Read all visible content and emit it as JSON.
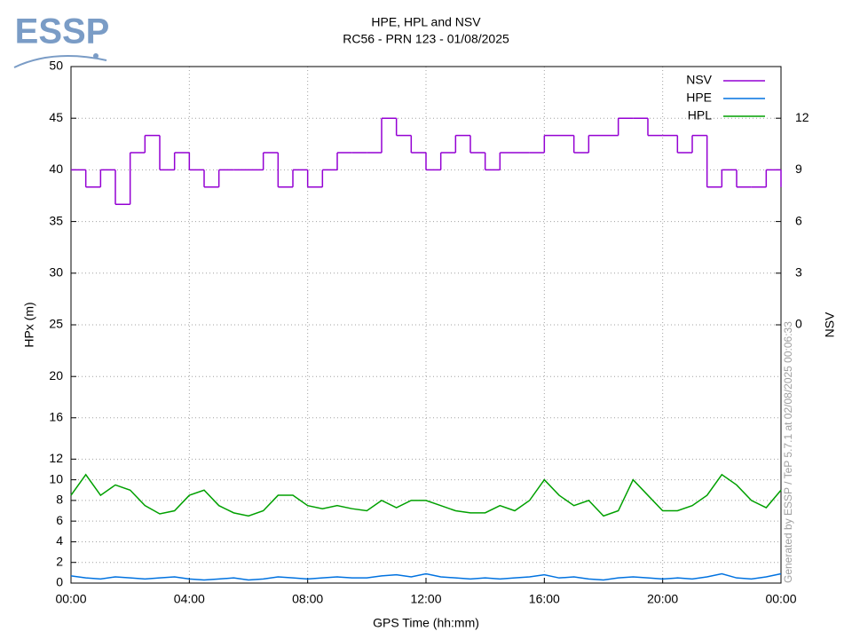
{
  "logo": "ESSP",
  "footer_note": "Generated by ESSP / TeP 5.7.1 at 02/08/2025 00:06:33",
  "chart_data": {
    "type": "line",
    "title": "HPE, HPL and NSV",
    "subtitle": "RC56 - PRN 123 - 01/08/2025",
    "x_label": "GPS Time (hh:mm)",
    "y_label": "HPx (m)",
    "y2_label": "NSV",
    "x": [
      0,
      0.5,
      1,
      1.5,
      2,
      2.5,
      3,
      3.5,
      4,
      4.5,
      5,
      5.5,
      6,
      6.5,
      7,
      7.5,
      8,
      8.5,
      9,
      9.5,
      10,
      10.5,
      11,
      11.5,
      12,
      12.5,
      13,
      13.5,
      14,
      14.5,
      15,
      15.5,
      16,
      16.5,
      17,
      17.5,
      18,
      18.5,
      19,
      19.5,
      20,
      20.5,
      21,
      21.5,
      22,
      22.5,
      23,
      23.5,
      24
    ],
    "xlim": [
      0,
      24
    ],
    "xticks": [
      {
        "value": 0,
        "label": "00:00"
      },
      {
        "value": 4,
        "label": "04:00"
      },
      {
        "value": 8,
        "label": "08:00"
      },
      {
        "value": 12,
        "label": "12:00"
      },
      {
        "value": 16,
        "label": "16:00"
      },
      {
        "value": 20,
        "label": "20:00"
      },
      {
        "value": 24,
        "label": "00:00"
      }
    ],
    "ylim": [
      0,
      50
    ],
    "yticks": [
      0,
      2,
      4,
      6,
      8,
      10,
      12,
      16,
      20,
      25,
      30,
      35,
      40,
      45,
      50
    ],
    "y2lim": [
      -15,
      15
    ],
    "y2ticks": [
      0,
      3,
      6,
      9,
      12
    ],
    "grid": true,
    "legend": "top-right",
    "series": [
      {
        "name": "NSV",
        "color": "#9400d3",
        "axis": "y2",
        "step": true,
        "values": [
          9,
          8,
          9,
          7,
          10,
          11,
          9,
          10,
          9,
          8,
          9,
          9,
          9,
          10,
          8,
          9,
          8,
          9,
          10,
          10,
          10,
          12,
          11,
          10,
          9,
          10,
          11,
          10,
          9,
          10,
          10,
          10,
          11,
          11,
          10,
          11,
          11,
          12,
          12,
          11,
          11,
          10,
          11,
          8,
          9,
          8,
          8,
          9,
          8
        ]
      },
      {
        "name": "HPE",
        "color": "#0072e0",
        "values": [
          0.7,
          0.5,
          0.4,
          0.6,
          0.5,
          0.4,
          0.5,
          0.6,
          0.4,
          0.3,
          0.4,
          0.5,
          0.3,
          0.4,
          0.6,
          0.5,
          0.4,
          0.5,
          0.6,
          0.5,
          0.5,
          0.7,
          0.8,
          0.6,
          0.9,
          0.6,
          0.5,
          0.4,
          0.5,
          0.4,
          0.5,
          0.6,
          0.8,
          0.5,
          0.6,
          0.4,
          0.3,
          0.5,
          0.6,
          0.5,
          0.4,
          0.5,
          0.4,
          0.6,
          0.9,
          0.5,
          0.4,
          0.6,
          0.9
        ]
      },
      {
        "name": "HPL",
        "color": "#00a000",
        "values": [
          8.5,
          10.5,
          8.5,
          9.5,
          9,
          7.5,
          6.7,
          7,
          8.5,
          9,
          7.5,
          6.8,
          6.5,
          7,
          8.5,
          8.5,
          7.5,
          7.2,
          7.5,
          7.2,
          7,
          8,
          7.3,
          8,
          8,
          7.5,
          7,
          6.8,
          6.8,
          7.5,
          7,
          8,
          10,
          8.5,
          7.5,
          8,
          6.5,
          7,
          10,
          8.5,
          7,
          7,
          7.5,
          8.5,
          10.5,
          9.5,
          8,
          7.3,
          9
        ]
      }
    ]
  }
}
